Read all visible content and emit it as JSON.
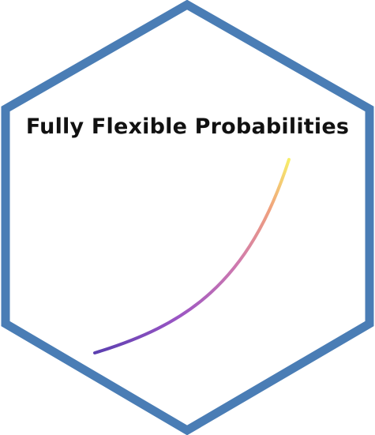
{
  "logo": {
    "title": "Fully Flexible Probabilities",
    "border_color": "#4a7db5",
    "fill_color": "#ffffff",
    "curve_colors": [
      "#5b3fb0",
      "#9a55c4",
      "#d07aae",
      "#f0a07e",
      "#f7ef6a"
    ]
  }
}
